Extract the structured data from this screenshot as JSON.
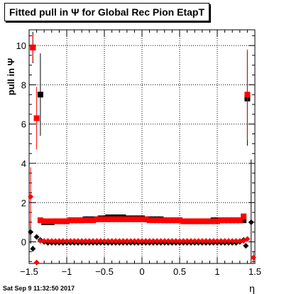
{
  "chart_data": {
    "type": "scatter",
    "title": "Fitted pull in Ψ  for Global Rec Pion EtapT",
    "xlabel": "η",
    "ylabel": "pull in Ψ",
    "xlim": [
      -1.5,
      1.5
    ],
    "ylim": [
      -1.1,
      10.8
    ],
    "grid": true,
    "xticks": [
      -1.5,
      -1.0,
      -0.5,
      0.0,
      0.5,
      1.0,
      1.5
    ],
    "xtick_labels": [
      "−1.5",
      "−1",
      "−0.5",
      "0",
      "0.5",
      "1",
      "1.5"
    ],
    "yticks": [
      0,
      2,
      4,
      6,
      8,
      10
    ],
    "ytick_labels": [
      "0",
      "2",
      "4",
      "6",
      "8",
      "10"
    ],
    "series": [
      {
        "marker": "square",
        "color": "#000000",
        "x": [
          -1.45,
          -1.35,
          -1.3,
          -1.25,
          -1.2,
          -1.15,
          -1.1,
          -1.05,
          -1.0,
          -0.95,
          -0.9,
          -0.85,
          -0.8,
          -0.75,
          -0.7,
          -0.65,
          -0.6,
          -0.55,
          -0.5,
          -0.45,
          -0.4,
          -0.35,
          -0.3,
          -0.25,
          -0.2,
          -0.15,
          -0.1,
          -0.05,
          0.0,
          0.05,
          0.1,
          0.15,
          0.2,
          0.25,
          0.3,
          0.35,
          0.4,
          0.45,
          0.5,
          0.55,
          0.6,
          0.65,
          0.7,
          0.75,
          0.8,
          0.85,
          0.9,
          0.95,
          1.0,
          1.05,
          1.1,
          1.15,
          1.2,
          1.25,
          1.3,
          1.35,
          1.4
        ],
        "y": [
          9.9,
          7.5,
          1.0,
          1.0,
          1.0,
          1.05,
          1.05,
          1.05,
          1.05,
          1.1,
          1.1,
          1.1,
          1.1,
          1.15,
          1.15,
          1.15,
          1.15,
          1.2,
          1.2,
          1.25,
          1.25,
          1.25,
          1.25,
          1.25,
          1.2,
          1.2,
          1.2,
          1.2,
          1.2,
          1.15,
          1.15,
          1.15,
          1.15,
          1.15,
          1.1,
          1.1,
          1.1,
          1.1,
          1.1,
          1.05,
          1.05,
          1.05,
          1.05,
          1.05,
          1.05,
          1.05,
          1.05,
          1.1,
          1.1,
          1.1,
          1.1,
          1.1,
          1.1,
          1.1,
          1.1,
          1.1,
          7.3
        ],
        "yerr": [
          0.8,
          2.1,
          0.1,
          0.05,
          0.05,
          0.05,
          0.05,
          0.05,
          0.05,
          0.05,
          0.05,
          0.05,
          0.05,
          0.05,
          0.05,
          0.05,
          0.05,
          0.05,
          0.05,
          0.05,
          0.05,
          0.05,
          0.05,
          0.05,
          0.05,
          0.05,
          0.05,
          0.05,
          0.05,
          0.05,
          0.05,
          0.05,
          0.05,
          0.05,
          0.05,
          0.05,
          0.05,
          0.05,
          0.05,
          0.05,
          0.05,
          0.05,
          0.05,
          0.05,
          0.05,
          0.05,
          0.05,
          0.05,
          0.05,
          0.05,
          0.05,
          0.05,
          0.05,
          0.05,
          0.1,
          0.1,
          2.4
        ]
      },
      {
        "marker": "square",
        "color": "#ff0000",
        "x": [
          -1.45,
          -1.4,
          -1.35,
          -1.3,
          -1.25,
          -1.2,
          -1.15,
          -1.1,
          -1.05,
          -1.0,
          -0.95,
          -0.9,
          -0.85,
          -0.8,
          -0.75,
          -0.7,
          -0.65,
          -0.6,
          -0.55,
          -0.5,
          -0.45,
          -0.4,
          -0.35,
          -0.3,
          -0.25,
          -0.2,
          -0.15,
          -0.1,
          -0.05,
          0.0,
          0.05,
          0.1,
          0.15,
          0.2,
          0.25,
          0.3,
          0.35,
          0.4,
          0.45,
          0.5,
          0.55,
          0.6,
          0.65,
          0.7,
          0.75,
          0.8,
          0.85,
          0.9,
          0.95,
          1.0,
          1.05,
          1.1,
          1.15,
          1.2,
          1.25,
          1.3,
          1.35,
          1.4
        ],
        "y": [
          9.9,
          6.3,
          1.1,
          1.05,
          1.05,
          1.05,
          1.05,
          1.05,
          1.05,
          1.05,
          1.1,
          1.1,
          1.1,
          1.1,
          1.1,
          1.1,
          1.1,
          1.15,
          1.15,
          1.15,
          1.15,
          1.15,
          1.15,
          1.15,
          1.15,
          1.15,
          1.15,
          1.15,
          1.15,
          1.15,
          1.15,
          1.1,
          1.1,
          1.1,
          1.1,
          1.1,
          1.1,
          1.1,
          1.1,
          1.1,
          1.05,
          1.05,
          1.05,
          1.05,
          1.05,
          1.05,
          1.05,
          1.05,
          1.05,
          1.05,
          1.1,
          1.1,
          1.1,
          1.1,
          1.1,
          1.1,
          1.3,
          7.5
        ],
        "yerr": [
          0.7,
          1.6,
          0.1,
          0.05,
          0.05,
          0.05,
          0.05,
          0.05,
          0.05,
          0.05,
          0.05,
          0.05,
          0.05,
          0.05,
          0.05,
          0.05,
          0.05,
          0.05,
          0.05,
          0.05,
          0.05,
          0.05,
          0.05,
          0.05,
          0.05,
          0.05,
          0.05,
          0.05,
          0.05,
          0.05,
          0.05,
          0.05,
          0.05,
          0.05,
          0.05,
          0.05,
          0.05,
          0.05,
          0.05,
          0.05,
          0.05,
          0.05,
          0.05,
          0.05,
          0.05,
          0.05,
          0.05,
          0.05,
          0.05,
          0.05,
          0.05,
          0.05,
          0.05,
          0.05,
          0.05,
          0.05,
          0.1,
          2.3
        ]
      },
      {
        "marker": "diamond",
        "color": "#000000",
        "x": [
          -1.48,
          -1.45,
          -1.4,
          -1.35,
          -1.3,
          -1.25,
          -1.2,
          -1.15,
          -1.1,
          -1.05,
          -1.0,
          -0.95,
          -0.9,
          -0.85,
          -0.8,
          -0.75,
          -0.7,
          -0.65,
          -0.6,
          -0.55,
          -0.5,
          -0.45,
          -0.4,
          -0.35,
          -0.3,
          -0.25,
          -0.2,
          -0.15,
          -0.1,
          -0.05,
          0.0,
          0.05,
          0.1,
          0.15,
          0.2,
          0.25,
          0.3,
          0.35,
          0.4,
          0.45,
          0.5,
          0.55,
          0.6,
          0.65,
          0.7,
          0.75,
          0.8,
          0.85,
          0.9,
          0.95,
          1.0,
          1.05,
          1.1,
          1.15,
          1.2,
          1.25,
          1.3,
          1.35,
          1.38,
          1.45
        ],
        "y": [
          0.5,
          -0.35,
          0.25,
          0.1,
          0.0,
          -0.05,
          -0.05,
          -0.05,
          -0.05,
          -0.05,
          -0.05,
          -0.05,
          -0.05,
          -0.05,
          -0.05,
          -0.05,
          -0.05,
          -0.05,
          -0.05,
          -0.05,
          -0.05,
          -0.05,
          -0.05,
          -0.05,
          -0.05,
          -0.05,
          -0.05,
          -0.05,
          -0.05,
          -0.05,
          -0.05,
          -0.05,
          -0.05,
          -0.05,
          -0.05,
          -0.05,
          -0.05,
          -0.05,
          -0.05,
          -0.05,
          -0.05,
          -0.05,
          -0.05,
          -0.05,
          -0.05,
          -0.05,
          -0.05,
          -0.05,
          -0.05,
          -0.05,
          -0.05,
          -0.05,
          -0.05,
          -0.05,
          -0.05,
          -0.05,
          0.0,
          0.1,
          -0.2,
          1.0
        ],
        "yerr": [
          0.6,
          0.15,
          0.1,
          0.05,
          0.05,
          0.05,
          0.05,
          0.05,
          0.05,
          0.05,
          0.05,
          0.05,
          0.05,
          0.05,
          0.05,
          0.05,
          0.05,
          0.05,
          0.05,
          0.05,
          0.05,
          0.05,
          0.05,
          0.05,
          0.05,
          0.05,
          0.05,
          0.05,
          0.05,
          0.05,
          0.05,
          0.05,
          0.05,
          0.05,
          0.05,
          0.05,
          0.05,
          0.05,
          0.05,
          0.05,
          0.05,
          0.05,
          0.05,
          0.05,
          0.05,
          0.05,
          0.05,
          0.05,
          0.05,
          0.05,
          0.05,
          0.05,
          0.05,
          0.05,
          0.05,
          0.05,
          0.05,
          0.1,
          0.1,
          3.2
        ]
      },
      {
        "marker": "diamond",
        "color": "#ff0000",
        "x": [
          -1.48,
          -1.4,
          -1.35,
          -1.3,
          -1.25,
          -1.2,
          -1.15,
          -1.1,
          -1.05,
          -1.0,
          -0.95,
          -0.9,
          -0.85,
          -0.8,
          -0.75,
          -0.7,
          -0.65,
          -0.6,
          -0.55,
          -0.5,
          -0.45,
          -0.4,
          -0.35,
          -0.3,
          -0.25,
          -0.2,
          -0.15,
          -0.1,
          -0.05,
          0.0,
          0.05,
          0.1,
          0.15,
          0.2,
          0.25,
          0.3,
          0.35,
          0.4,
          0.45,
          0.5,
          0.55,
          0.6,
          0.65,
          0.7,
          0.75,
          0.8,
          0.85,
          0.9,
          0.95,
          1.0,
          1.05,
          1.1,
          1.15,
          1.2,
          1.25,
          1.3,
          1.35,
          1.4,
          1.48
        ],
        "y": [
          2.3,
          -1.05,
          0.05,
          0.05,
          0.05,
          0.05,
          0.05,
          0.05,
          0.05,
          0.05,
          0.05,
          0.05,
          0.05,
          0.05,
          0.05,
          0.05,
          0.05,
          0.05,
          0.05,
          0.05,
          0.05,
          0.05,
          0.05,
          0.05,
          0.05,
          0.05,
          0.05,
          0.05,
          0.05,
          0.05,
          0.05,
          0.05,
          0.05,
          0.05,
          0.05,
          0.05,
          0.05,
          0.05,
          0.05,
          0.05,
          0.05,
          0.05,
          0.05,
          0.05,
          0.05,
          0.05,
          0.05,
          0.05,
          0.05,
          0.05,
          0.05,
          0.05,
          0.05,
          0.05,
          0.05,
          0.05,
          0.05,
          0.15,
          -0.8
        ],
        "yerr": [
          1.5,
          0.1,
          0.05,
          0.05,
          0.05,
          0.05,
          0.05,
          0.05,
          0.05,
          0.05,
          0.05,
          0.05,
          0.05,
          0.05,
          0.05,
          0.05,
          0.05,
          0.05,
          0.05,
          0.05,
          0.05,
          0.05,
          0.05,
          0.05,
          0.05,
          0.05,
          0.05,
          0.05,
          0.05,
          0.05,
          0.05,
          0.05,
          0.05,
          0.05,
          0.05,
          0.05,
          0.05,
          0.05,
          0.05,
          0.05,
          0.05,
          0.05,
          0.05,
          0.05,
          0.05,
          0.05,
          0.05,
          0.05,
          0.05,
          0.05,
          0.05,
          0.05,
          0.05,
          0.05,
          0.05,
          0.05,
          0.1,
          0.1,
          0.3
        ]
      }
    ]
  },
  "footer": {
    "datestamp": "Sat Sep  9 11:32:50 2017"
  }
}
